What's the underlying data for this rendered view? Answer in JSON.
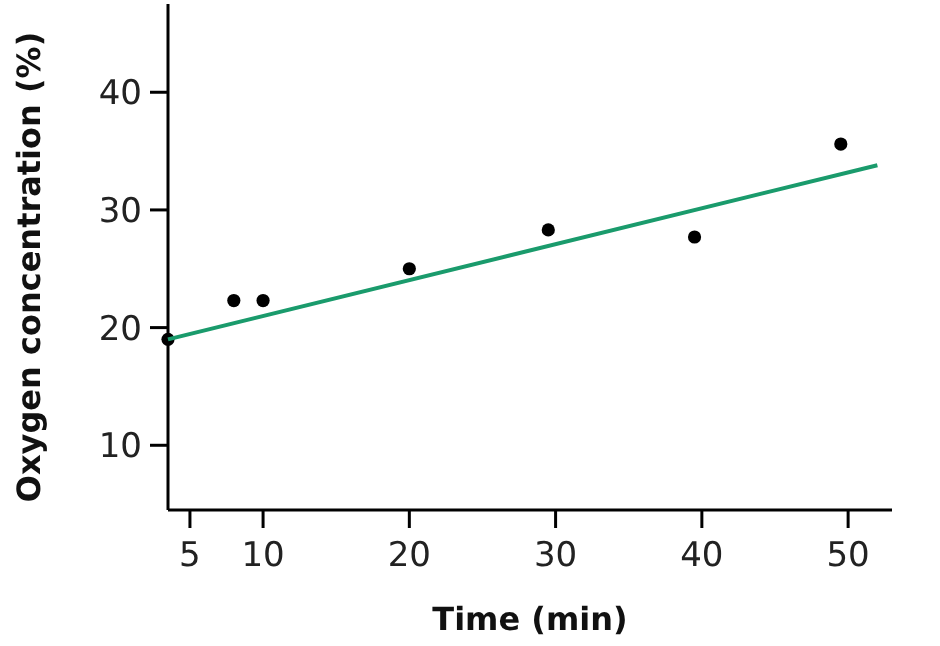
{
  "chart_data": {
    "type": "scatter",
    "xlabel": "Time (min)",
    "ylabel": "Oxygen concentration (%)",
    "xlim": [
      3.5,
      53
    ],
    "ylim": [
      4.5,
      47.5
    ],
    "xticks": [
      5,
      10,
      20,
      30,
      40,
      50
    ],
    "yticks": [
      10,
      20,
      30,
      40
    ],
    "grid": false,
    "marker": "circle",
    "series": [
      {
        "color": "#000000",
        "x": [
          3.5,
          8,
          10,
          20,
          29.5,
          39.5,
          49.5
        ],
        "values": [
          19,
          22.3,
          22.3,
          25,
          28.3,
          27.7,
          35.6
        ]
      },
      {
        "type": "line",
        "color": "#1a9b6c",
        "marker": "none",
        "line_style": "solid",
        "x": [
          3.5,
          52
        ],
        "values": [
          19,
          33.8
        ]
      }
    ]
  }
}
